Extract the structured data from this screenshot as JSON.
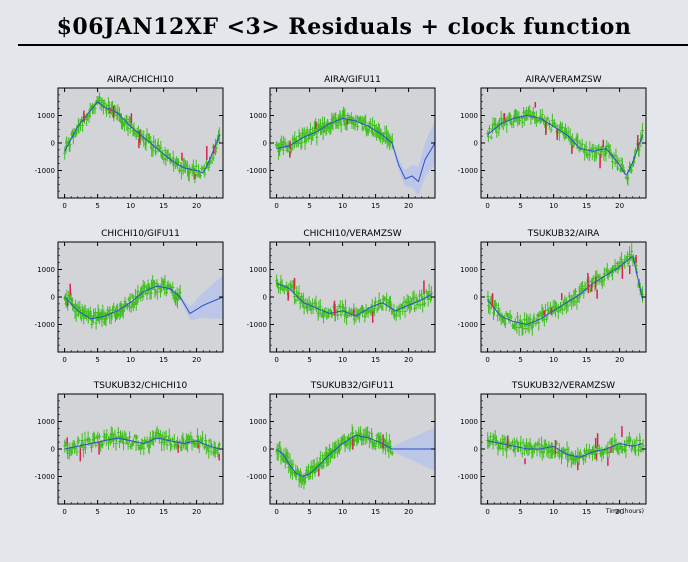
{
  "title": "$06JAN12XF <3> Residuals + clock function",
  "time_axis_label": "Time (hours)",
  "colors": {
    "background": "#e3e6ea",
    "plot_background": "#d2d4d7",
    "residual_points": "#3fbf1f",
    "flagged_points": "#d8234f",
    "clock_function": "#2c4fc9",
    "clock_uncertainty": "#b9c4e9"
  },
  "chart_data": [
    {
      "type": "scatter",
      "title": "AIRA/CHICHI10",
      "xlim": [
        -1,
        24
      ],
      "ylim": [
        -2000,
        2000
      ],
      "xticks": [
        0,
        5,
        10,
        15,
        20
      ],
      "yticks": [
        1000,
        0,
        -1000
      ],
      "series": [
        {
          "x": [
            0,
            2,
            4,
            5,
            6,
            8,
            10,
            12,
            14,
            16,
            18,
            20,
            21,
            22,
            23.5
          ],
          "y": [
            -300,
            600,
            1200,
            1500,
            1300,
            1100,
            600,
            200,
            -200,
            -600,
            -900,
            -1000,
            -1100,
            -600,
            300
          ]
        }
      ],
      "has_fit_line": false,
      "flagged_count": 10
    },
    {
      "type": "scatter",
      "title": "AIRA/GIFU11",
      "xlim": [
        -1,
        24
      ],
      "ylim": [
        -2000,
        2000
      ],
      "xticks": [
        0,
        5,
        10,
        15,
        20
      ],
      "yticks": [
        1000,
        0,
        -1000
      ],
      "series": [
        {
          "x": [
            0,
            2,
            4,
            6,
            8,
            10,
            12,
            14,
            16,
            17.5
          ],
          "y": [
            -200,
            -100,
            200,
            400,
            700,
            900,
            800,
            600,
            300,
            0
          ]
        }
      ],
      "fit_line": {
        "x": [
          17.5,
          18.5,
          19.5,
          20.5,
          21.5,
          22.5,
          24
        ],
        "y": [
          0,
          -800,
          -1300,
          -1200,
          -1400,
          -600,
          0
        ]
      },
      "flagged_count": 4
    },
    {
      "type": "scatter",
      "title": "AIRA/VERAMZSW",
      "xlim": [
        -1,
        24
      ],
      "ylim": [
        -2000,
        2000
      ],
      "xticks": [
        0,
        5,
        10,
        15,
        20
      ],
      "yticks": [
        1000,
        0,
        -1000
      ],
      "series": [
        {
          "x": [
            0,
            2,
            4,
            6,
            8,
            10,
            12,
            14,
            16,
            18,
            20,
            21,
            22,
            23.5
          ],
          "y": [
            300,
            700,
            900,
            1000,
            900,
            600,
            300,
            -200,
            -300,
            -200,
            -800,
            -1200,
            -700,
            300
          ]
        }
      ],
      "has_fit_line": false,
      "flagged_count": 8
    },
    {
      "type": "scatter",
      "title": "CHICHI10/GIFU11",
      "xlim": [
        -1,
        24
      ],
      "ylim": [
        -2000,
        2000
      ],
      "xticks": [
        0,
        5,
        10,
        15,
        20
      ],
      "yticks": [
        1000,
        0,
        -1000
      ],
      "series": [
        {
          "x": [
            0,
            2,
            4,
            6,
            8,
            10,
            12,
            14,
            16,
            17.5
          ],
          "y": [
            0,
            -500,
            -800,
            -700,
            -500,
            -200,
            200,
            400,
            300,
            0
          ]
        }
      ],
      "fit_line": {
        "x": [
          17.5,
          19,
          21,
          24
        ],
        "y": [
          0,
          -600,
          -300,
          0
        ]
      },
      "flagged_count": 2
    },
    {
      "type": "scatter",
      "title": "CHICHI10/VERAMZSW",
      "xlim": [
        -1,
        24
      ],
      "ylim": [
        -2000,
        2000
      ],
      "xticks": [
        0,
        5,
        10,
        15,
        20
      ],
      "yticks": [
        1000,
        0,
        -1000
      ],
      "series": [
        {
          "x": [
            0,
            2,
            4,
            6,
            8,
            10,
            12,
            14,
            16,
            18,
            20,
            22,
            23.5
          ],
          "y": [
            500,
            300,
            -200,
            -400,
            -600,
            -500,
            -700,
            -400,
            -200,
            -500,
            -300,
            -100,
            100
          ]
        }
      ],
      "has_fit_line": false,
      "flagged_count": 6
    },
    {
      "type": "scatter",
      "title": "TSUKUB32/AIRA",
      "xlim": [
        -1,
        24
      ],
      "ylim": [
        -2000,
        2000
      ],
      "xticks": [
        0,
        5,
        10,
        15,
        20
      ],
      "yticks": [
        1000,
        0,
        -1000
      ],
      "series": [
        {
          "x": [
            0,
            2,
            4,
            6,
            8,
            10,
            12,
            14,
            16,
            18,
            20,
            21,
            22,
            23.5
          ],
          "y": [
            -100,
            -700,
            -900,
            -1000,
            -800,
            -500,
            -200,
            100,
            500,
            800,
            1100,
            1300,
            1500,
            -100
          ]
        }
      ],
      "has_fit_line": false,
      "flagged_count": 12
    },
    {
      "type": "scatter",
      "title": "TSUKUB32/CHICHI10",
      "xlim": [
        -1,
        24
      ],
      "ylim": [
        -2000,
        2000
      ],
      "xticks": [
        0,
        5,
        10,
        15,
        20
      ],
      "yticks": [
        1000,
        0,
        -1000
      ],
      "series": [
        {
          "x": [
            0,
            2,
            4,
            6,
            8,
            10,
            12,
            14,
            16,
            18,
            20,
            22,
            23.5
          ],
          "y": [
            0,
            100,
            200,
            300,
            400,
            300,
            200,
            400,
            300,
            200,
            300,
            100,
            0
          ]
        }
      ],
      "has_fit_line": false,
      "flagged_count": 6
    },
    {
      "type": "scatter",
      "title": "TSUKUB32/GIFU11",
      "xlim": [
        -1,
        24
      ],
      "ylim": [
        -2000,
        2000
      ],
      "xticks": [
        0,
        5,
        10,
        15,
        20
      ],
      "yticks": [
        1000,
        0,
        -1000
      ],
      "series": [
        {
          "x": [
            0,
            1,
            2,
            3,
            4,
            5,
            6,
            8,
            10,
            12,
            14,
            16,
            17.5
          ],
          "y": [
            0,
            -200,
            -600,
            -900,
            -1000,
            -900,
            -700,
            -200,
            200,
            500,
            400,
            200,
            0
          ]
        }
      ],
      "fit_line": {
        "x": [
          17.5,
          20,
          24
        ],
        "y": [
          0,
          0,
          0
        ]
      },
      "flagged_count": 3
    },
    {
      "type": "scatter",
      "title": "TSUKUB32/VERAMZSW",
      "xlim": [
        -1,
        24
      ],
      "ylim": [
        -2000,
        2000
      ],
      "xticks": [
        0,
        5,
        10,
        15,
        20
      ],
      "yticks": [
        1000,
        0,
        -1000
      ],
      "series": [
        {
          "x": [
            0,
            2,
            4,
            6,
            8,
            10,
            12,
            14,
            16,
            18,
            20,
            22,
            23.5
          ],
          "y": [
            300,
            200,
            100,
            0,
            0,
            100,
            -200,
            -300,
            -100,
            0,
            200,
            100,
            200
          ]
        }
      ],
      "has_fit_line": false,
      "flagged_count": 10
    }
  ]
}
